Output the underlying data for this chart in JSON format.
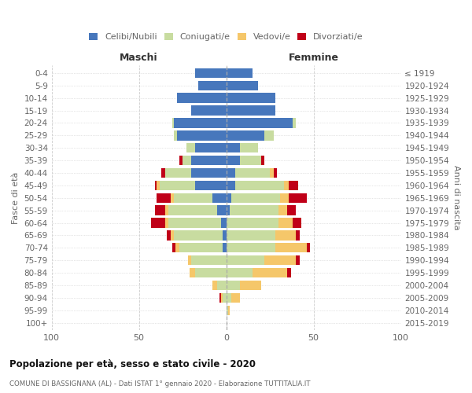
{
  "age_groups": [
    "0-4",
    "5-9",
    "10-14",
    "15-19",
    "20-24",
    "25-29",
    "30-34",
    "35-39",
    "40-44",
    "45-49",
    "50-54",
    "55-59",
    "60-64",
    "65-69",
    "70-74",
    "75-79",
    "80-84",
    "85-89",
    "90-94",
    "95-99",
    "100+"
  ],
  "birth_years": [
    "2015-2019",
    "2010-2014",
    "2005-2009",
    "2000-2004",
    "1995-1999",
    "1990-1994",
    "1985-1989",
    "1980-1984",
    "1975-1979",
    "1970-1974",
    "1965-1969",
    "1960-1964",
    "1955-1959",
    "1950-1954",
    "1945-1949",
    "1940-1944",
    "1935-1939",
    "1930-1934",
    "1925-1929",
    "1920-1924",
    "≤ 1919"
  ],
  "males_celibi": [
    18,
    16,
    28,
    20,
    30,
    28,
    18,
    20,
    20,
    18,
    8,
    5,
    3,
    2,
    2,
    0,
    0,
    0,
    0,
    0,
    0
  ],
  "males_coniugati": [
    0,
    0,
    0,
    0,
    1,
    2,
    5,
    5,
    15,
    20,
    22,
    28,
    30,
    28,
    25,
    20,
    18,
    5,
    2,
    0,
    0
  ],
  "males_vedovi": [
    0,
    0,
    0,
    0,
    0,
    0,
    0,
    0,
    0,
    2,
    2,
    2,
    2,
    2,
    2,
    2,
    3,
    3,
    1,
    0,
    0
  ],
  "males_divorziati": [
    0,
    0,
    0,
    0,
    0,
    0,
    0,
    2,
    2,
    1,
    8,
    6,
    8,
    2,
    2,
    0,
    0,
    0,
    1,
    0,
    0
  ],
  "females_nubili": [
    15,
    18,
    28,
    28,
    38,
    22,
    8,
    8,
    5,
    5,
    3,
    2,
    0,
    0,
    0,
    0,
    0,
    0,
    0,
    0,
    0
  ],
  "females_coniugate": [
    0,
    0,
    0,
    0,
    2,
    5,
    10,
    12,
    20,
    28,
    28,
    28,
    30,
    28,
    28,
    22,
    15,
    8,
    3,
    1,
    0
  ],
  "females_vedove": [
    0,
    0,
    0,
    0,
    0,
    0,
    0,
    0,
    2,
    3,
    5,
    5,
    8,
    12,
    18,
    18,
    20,
    12,
    5,
    1,
    0
  ],
  "females_divorziate": [
    0,
    0,
    0,
    0,
    0,
    0,
    0,
    2,
    2,
    5,
    10,
    5,
    5,
    2,
    2,
    2,
    2,
    0,
    0,
    0,
    0
  ],
  "color_celibi": "#4777BC",
  "color_coniugati": "#C8DCA0",
  "color_vedovi": "#F5C76A",
  "color_divorziati": "#C00018",
  "xlim_min": -100,
  "xlim_max": 100,
  "title": "Popolazione per età, sesso e stato civile - 2020",
  "subtitle": "COMUNE DI BASSIGNANA (AL) - Dati ISTAT 1° gennaio 2020 - Elaborazione TUTTITALIA.IT",
  "ylabel_left": "Fasce di età",
  "ylabel_right": "Anni di nascita",
  "label_maschi": "Maschi",
  "label_femmine": "Femmine",
  "legend_labels": [
    "Celibi/Nubili",
    "Coniugati/e",
    "Vedovi/e",
    "Divorziati/e"
  ],
  "bg_color": "#FFFFFF",
  "grid_color": "#CCCCCC",
  "text_color": "#666666",
  "title_color": "#111111"
}
